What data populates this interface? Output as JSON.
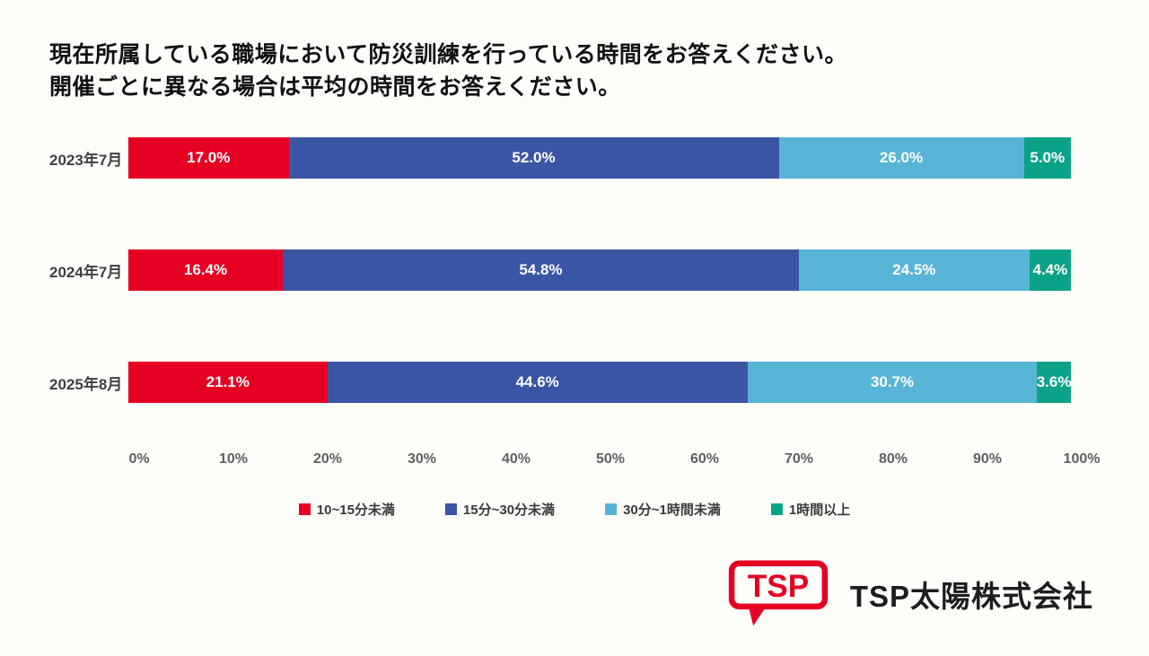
{
  "title": {
    "line1": "現在所属している職場において防災訓練を行っている時間をお答えください。",
    "line2": "開催ごとに異なる場合は平均の時間をお答えください。"
  },
  "chart_data": {
    "type": "bar",
    "stacked": true,
    "orientation": "horizontal",
    "categories": [
      "2023年7月",
      "2024年7月",
      "2025年8月"
    ],
    "series": [
      {
        "name": "10~15分未満",
        "color": "#e50023",
        "values": [
          17.0,
          16.4,
          21.1
        ]
      },
      {
        "name": "15分~30分未満",
        "color": "#3b55a5",
        "values": [
          52.0,
          54.8,
          44.6
        ]
      },
      {
        "name": "30分~1時間未満",
        "color": "#58b4d6",
        "values": [
          26.0,
          24.5,
          30.7
        ]
      },
      {
        "name": "1時間以上",
        "color": "#0ca287",
        "values": [
          5.0,
          4.4,
          3.6
        ]
      }
    ],
    "value_labels": [
      [
        "17.0%",
        "52.0%",
        "26.0%",
        "5.0%"
      ],
      [
        "16.4%",
        "54.8%",
        "24.5%",
        "4.4%"
      ],
      [
        "21.1%",
        "44.6%",
        "30.7%",
        "3.6%"
      ]
    ],
    "x_ticks": [
      "0%",
      "10%",
      "20%",
      "30%",
      "40%",
      "50%",
      "60%",
      "70%",
      "80%",
      "90%",
      "100%"
    ],
    "xlim": [
      0,
      100
    ],
    "grid": false,
    "legend_position": "bottom"
  },
  "logo": {
    "mark_text": "TSP",
    "company_name": "TSP太陽株式会社",
    "brand_color": "#e50023"
  }
}
